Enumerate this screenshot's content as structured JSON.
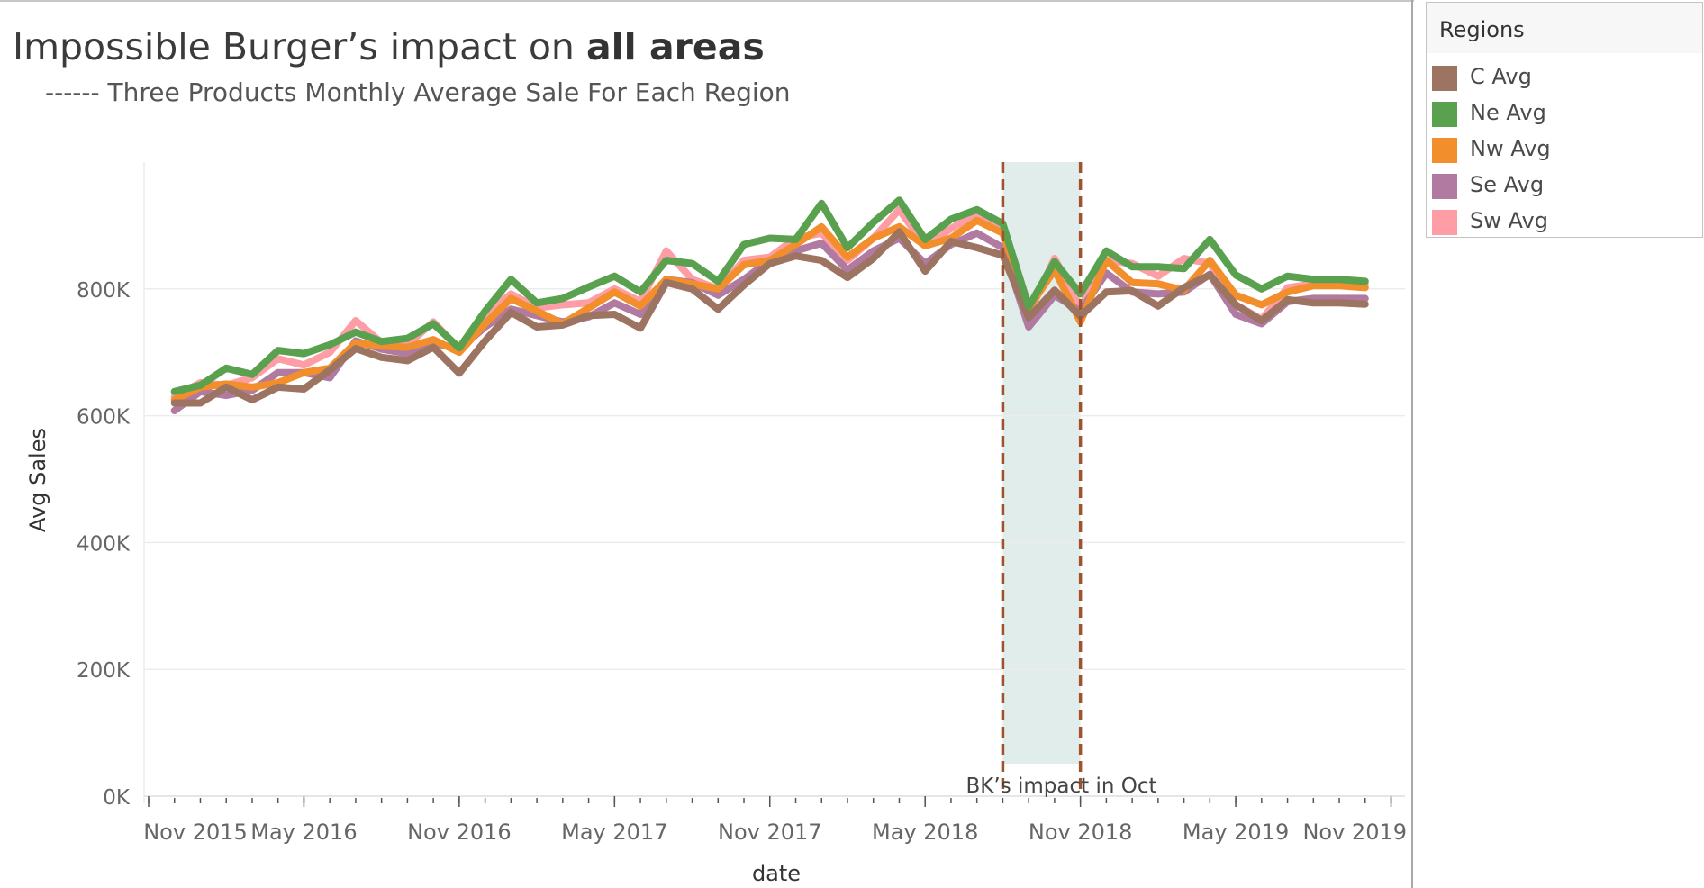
{
  "title": {
    "prefix": "Impossible Burger’s impact on ",
    "bold": "all areas"
  },
  "subtitle": "------ Three Products Monthly Average Sale For Each Region",
  "legend": {
    "title": "Regions",
    "items": [
      {
        "label": "C Avg",
        "color": "#9c7461"
      },
      {
        "label": "Ne Avg",
        "color": "#59a14f"
      },
      {
        "label": "Nw Avg",
        "color": "#f28e2b"
      },
      {
        "label": "Se Avg",
        "color": "#b07aa1"
      },
      {
        "label": "Sw Avg",
        "color": "#ff9da7"
      }
    ]
  },
  "annotation": {
    "label": "BK’s impact in Oct",
    "band_start": "2018-08",
    "band_end": "2018-11",
    "line_color": "#a0522d",
    "band_color": "#e0edea"
  },
  "chart_data": {
    "type": "line",
    "xlabel": "date",
    "ylabel": "Avg Sales",
    "ylim": [
      0,
      1000000
    ],
    "yticks": [
      0,
      200000,
      400000,
      600000,
      800000
    ],
    "ytick_labels": [
      "0K",
      "200K",
      "400K",
      "600K",
      "800K"
    ],
    "xtick_labels": [
      "Nov 2015",
      "May 2016",
      "Nov 2016",
      "May 2017",
      "Nov 2017",
      "May 2018",
      "Nov 2018",
      "May 2019",
      "Nov 2019"
    ],
    "xtick_dates": [
      "2015-11",
      "2016-05",
      "2016-11",
      "2017-05",
      "2017-11",
      "2018-05",
      "2018-11",
      "2019-05",
      "2019-11"
    ],
    "x": [
      "2015-12",
      "2016-01",
      "2016-02",
      "2016-03",
      "2016-04",
      "2016-05",
      "2016-06",
      "2016-07",
      "2016-08",
      "2016-09",
      "2016-10",
      "2016-11",
      "2016-12",
      "2017-01",
      "2017-02",
      "2017-03",
      "2017-04",
      "2017-05",
      "2017-06",
      "2017-07",
      "2017-08",
      "2017-09",
      "2017-10",
      "2017-11",
      "2017-12",
      "2018-01",
      "2018-02",
      "2018-03",
      "2018-04",
      "2018-05",
      "2018-06",
      "2018-07",
      "2018-08",
      "2018-09",
      "2018-10",
      "2018-11",
      "2018-12",
      "2019-01",
      "2019-02",
      "2019-03",
      "2019-04",
      "2019-05",
      "2019-06",
      "2019-07",
      "2019-08",
      "2019-09",
      "2019-10"
    ],
    "grid": true,
    "legend": "right",
    "series": [
      {
        "name": "C Avg",
        "color": "#9c7461",
        "values": [
          620000,
          620000,
          645000,
          625000,
          645000,
          642000,
          672000,
          706000,
          692000,
          687000,
          708000,
          667000,
          718000,
          763000,
          740000,
          743000,
          758000,
          760000,
          738000,
          810000,
          800000,
          768000,
          806000,
          840000,
          852000,
          845000,
          818000,
          848000,
          890000,
          828000,
          875000,
          865000,
          853000,
          755000,
          798000,
          757000,
          795000,
          797000,
          773000,
          802000,
          822000,
          775000,
          750000,
          783000,
          778000,
          778000,
          776000
        ]
      },
      {
        "name": "Ne Avg",
        "color": "#59a14f",
        "values": [
          638000,
          648000,
          675000,
          665000,
          703000,
          698000,
          712000,
          732000,
          717000,
          722000,
          745000,
          707000,
          765000,
          815000,
          778000,
          785000,
          803000,
          820000,
          795000,
          845000,
          840000,
          812000,
          870000,
          880000,
          878000,
          935000,
          865000,
          905000,
          940000,
          878000,
          910000,
          925000,
          903000,
          772000,
          843000,
          792000,
          860000,
          835000,
          835000,
          832000,
          878000,
          822000,
          800000,
          820000,
          815000,
          815000,
          812000
        ]
      },
      {
        "name": "Nw Avg",
        "color": "#f28e2b",
        "values": [
          625000,
          645000,
          650000,
          645000,
          652000,
          668000,
          675000,
          715000,
          710000,
          708000,
          720000,
          700000,
          745000,
          785000,
          765000,
          745000,
          770000,
          795000,
          773000,
          815000,
          808000,
          800000,
          838000,
          845000,
          870000,
          898000,
          850000,
          880000,
          898000,
          868000,
          880000,
          908000,
          888000,
          770000,
          830000,
          748000,
          845000,
          810000,
          808000,
          798000,
          845000,
          790000,
          775000,
          795000,
          805000,
          805000,
          802000
        ]
      },
      {
        "name": "Se Avg",
        "color": "#b07aa1",
        "values": [
          608000,
          638000,
          632000,
          640000,
          668000,
          668000,
          660000,
          718000,
          705000,
          698000,
          715000,
          705000,
          740000,
          768000,
          758000,
          748000,
          756000,
          778000,
          760000,
          815000,
          810000,
          790000,
          815000,
          845000,
          860000,
          872000,
          830000,
          860000,
          880000,
          840000,
          870000,
          888000,
          865000,
          740000,
          790000,
          765000,
          825000,
          795000,
          792000,
          795000,
          823000,
          760000,
          745000,
          780000,
          785000,
          785000,
          785000
        ]
      },
      {
        "name": "Sw Avg",
        "color": "#ff9da7",
        "values": [
          630000,
          652000,
          648000,
          660000,
          690000,
          680000,
          700000,
          750000,
          715000,
          712000,
          748000,
          705000,
          760000,
          792000,
          770000,
          775000,
          778000,
          800000,
          780000,
          860000,
          815000,
          800000,
          845000,
          850000,
          880000,
          888000,
          845000,
          880000,
          925000,
          868000,
          895000,
          918000,
          898000,
          760000,
          848000,
          770000,
          845000,
          840000,
          820000,
          848000,
          840000,
          775000,
          752000,
          802000,
          808000,
          808000,
          808000
        ]
      }
    ]
  }
}
